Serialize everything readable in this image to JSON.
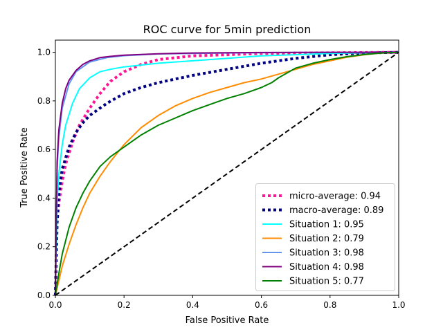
{
  "chart_data": {
    "type": "line",
    "title": "ROC curve for 5min prediction",
    "xlabel": "False Positive Rate",
    "ylabel": "True Positive Rate",
    "xlim": [
      0.0,
      1.0
    ],
    "ylim": [
      0.0,
      1.05
    ],
    "xticks": [
      0.0,
      0.2,
      0.4,
      0.6,
      0.8,
      1.0
    ],
    "yticks": [
      0.0,
      0.2,
      0.4,
      0.6,
      0.8,
      1.0
    ],
    "xtick_labels": [
      "0.0",
      "0.2",
      "0.4",
      "0.6",
      "0.8",
      "1.0"
    ],
    "ytick_labels": [
      "0.0",
      "0.2",
      "0.4",
      "0.6",
      "0.8",
      "1.0"
    ],
    "grid": false,
    "legend_position": "lower-right",
    "series": [
      {
        "name": "micro-average: 0.94",
        "color": "#ff1493",
        "style": "dotted-thick",
        "x": [
          0.0,
          0.005,
          0.01,
          0.02,
          0.03,
          0.05,
          0.07,
          0.1,
          0.13,
          0.16,
          0.2,
          0.25,
          0.3,
          0.4,
          0.5,
          0.6,
          0.8,
          1.0
        ],
        "y": [
          0.0,
          0.3,
          0.38,
          0.47,
          0.54,
          0.63,
          0.7,
          0.77,
          0.83,
          0.88,
          0.92,
          0.95,
          0.97,
          0.985,
          0.99,
          0.995,
          0.998,
          1.0
        ]
      },
      {
        "name": "macro-average: 0.89",
        "color": "#000080",
        "style": "dotted-thick",
        "x": [
          0.0,
          0.005,
          0.01,
          0.02,
          0.04,
          0.06,
          0.08,
          0.1,
          0.15,
          0.2,
          0.25,
          0.3,
          0.4,
          0.5,
          0.6,
          0.7,
          0.8,
          0.9,
          1.0
        ],
        "y": [
          0.0,
          0.3,
          0.42,
          0.52,
          0.61,
          0.67,
          0.71,
          0.74,
          0.79,
          0.83,
          0.855,
          0.875,
          0.905,
          0.93,
          0.955,
          0.975,
          0.99,
          0.997,
          1.0
        ]
      },
      {
        "name": "Situation 1: 0.95",
        "color": "#00ffff",
        "style": "solid",
        "x": [
          0.0,
          0.005,
          0.01,
          0.02,
          0.03,
          0.05,
          0.07,
          0.1,
          0.13,
          0.16,
          0.2,
          0.3,
          0.4,
          0.5,
          0.6,
          0.7,
          0.8,
          0.9,
          1.0
        ],
        "y": [
          0.0,
          0.38,
          0.5,
          0.62,
          0.7,
          0.79,
          0.85,
          0.895,
          0.92,
          0.93,
          0.94,
          0.955,
          0.965,
          0.975,
          0.985,
          0.99,
          0.995,
          0.998,
          1.0
        ]
      },
      {
        "name": "Situation 2: 0.79",
        "color": "#ff8c00",
        "style": "solid",
        "x": [
          0.0,
          0.01,
          0.02,
          0.04,
          0.06,
          0.08,
          0.1,
          0.13,
          0.16,
          0.2,
          0.25,
          0.3,
          0.35,
          0.4,
          0.45,
          0.5,
          0.55,
          0.6,
          0.65,
          0.7,
          0.75,
          0.8,
          0.85,
          0.9,
          0.95,
          1.0
        ],
        "y": [
          0.0,
          0.06,
          0.12,
          0.21,
          0.29,
          0.36,
          0.42,
          0.49,
          0.55,
          0.62,
          0.69,
          0.74,
          0.78,
          0.81,
          0.835,
          0.855,
          0.875,
          0.89,
          0.91,
          0.93,
          0.95,
          0.965,
          0.98,
          0.99,
          0.997,
          1.0
        ]
      },
      {
        "name": "Situation 3: 0.98",
        "color": "#6495ed",
        "style": "solid",
        "x": [
          0.0,
          0.005,
          0.01,
          0.02,
          0.04,
          0.06,
          0.1,
          0.15,
          0.2,
          0.3,
          0.5,
          0.7,
          1.0
        ],
        "y": [
          0.0,
          0.52,
          0.65,
          0.77,
          0.87,
          0.92,
          0.96,
          0.978,
          0.986,
          0.993,
          0.997,
          0.999,
          1.0
        ]
      },
      {
        "name": "Situation 4: 0.98",
        "color": "#800080",
        "style": "solid",
        "x": [
          0.0,
          0.005,
          0.01,
          0.02,
          0.03,
          0.04,
          0.06,
          0.08,
          0.1,
          0.13,
          0.16,
          0.2,
          0.3,
          0.4,
          0.6,
          0.8,
          1.0
        ],
        "y": [
          0.0,
          0.55,
          0.68,
          0.79,
          0.85,
          0.885,
          0.925,
          0.95,
          0.965,
          0.978,
          0.983,
          0.988,
          0.994,
          0.997,
          0.999,
          1.0,
          1.0
        ]
      },
      {
        "name": "Situation 5: 0.77",
        "color": "#008000",
        "style": "solid",
        "x": [
          0.0,
          0.01,
          0.02,
          0.04,
          0.06,
          0.08,
          0.1,
          0.13,
          0.16,
          0.2,
          0.25,
          0.3,
          0.35,
          0.4,
          0.45,
          0.5,
          0.55,
          0.6,
          0.63,
          0.65,
          0.7,
          0.75,
          0.8,
          0.85,
          0.9,
          0.95,
          1.0
        ],
        "y": [
          0.0,
          0.09,
          0.17,
          0.28,
          0.36,
          0.42,
          0.47,
          0.53,
          0.57,
          0.61,
          0.66,
          0.7,
          0.73,
          0.76,
          0.785,
          0.81,
          0.83,
          0.855,
          0.875,
          0.895,
          0.935,
          0.955,
          0.97,
          0.982,
          0.991,
          0.997,
          1.0
        ]
      },
      {
        "name": "",
        "color": "#000000",
        "style": "dashed",
        "x": [
          0.0,
          1.0
        ],
        "y": [
          0.0,
          1.0
        ]
      }
    ]
  }
}
